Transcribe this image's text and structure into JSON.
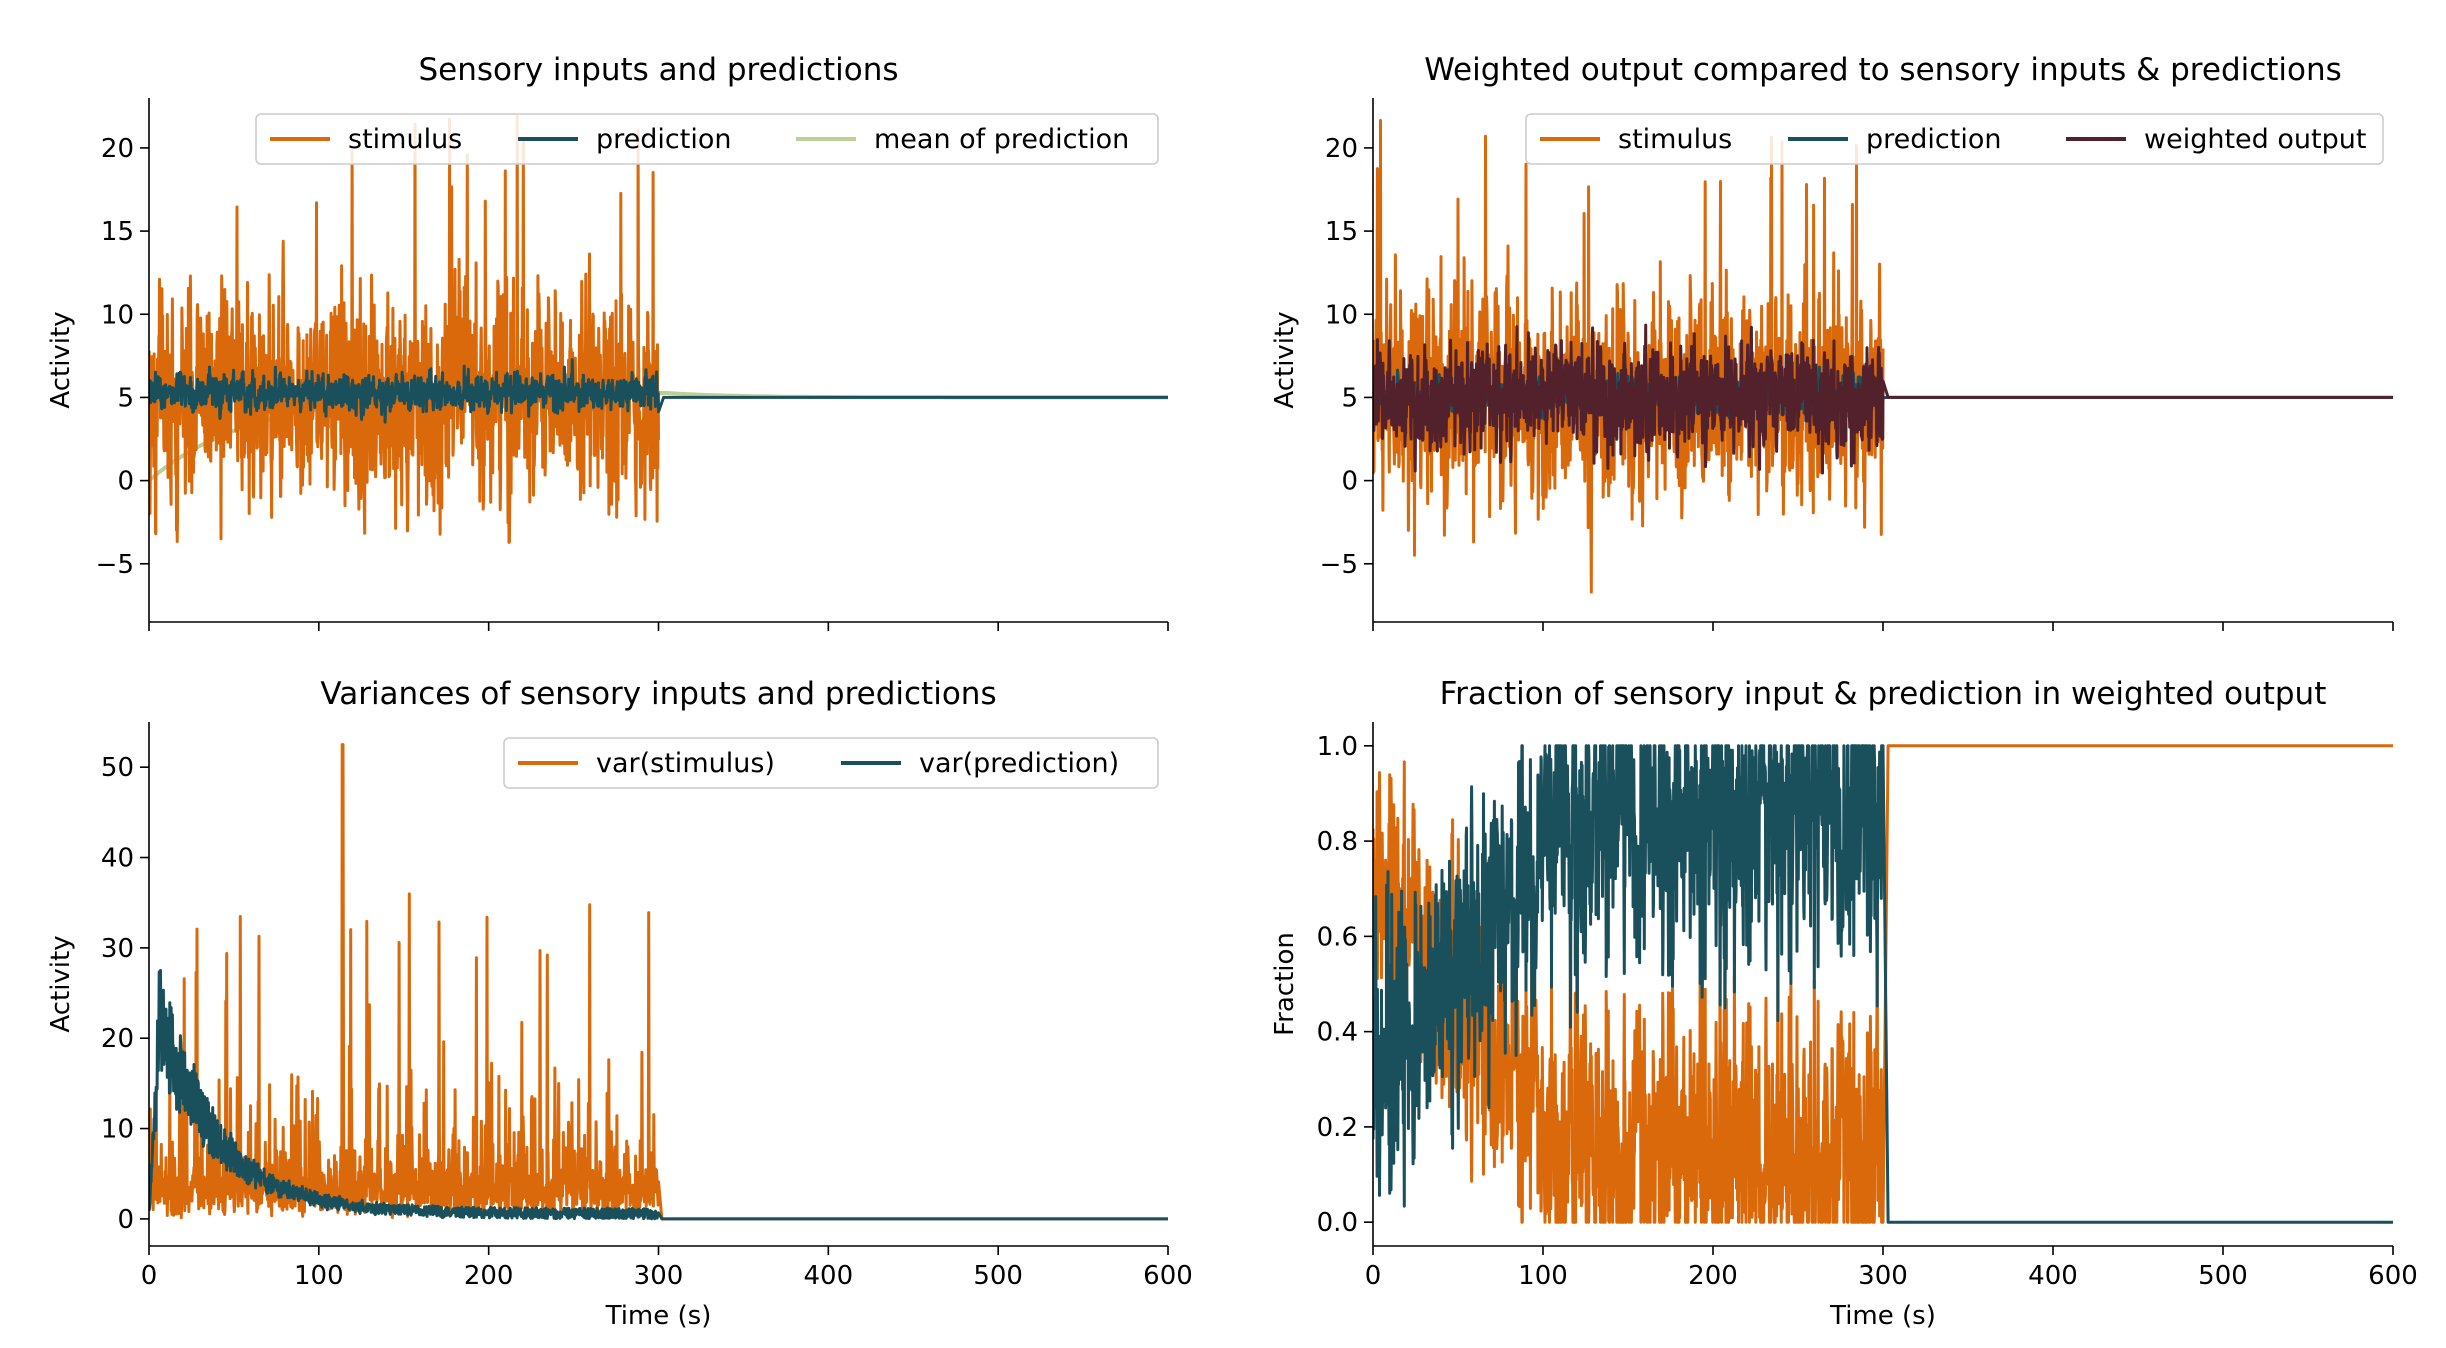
{
  "colors": {
    "stimulus": "#d9690a",
    "prediction": "#1a4f5c",
    "mean_of_prediction": "#bcd095",
    "weighted_output": "#53212b"
  },
  "chart_data": [
    {
      "id": "top-left",
      "type": "line",
      "title": "Sensory inputs and predictions",
      "xlabel": "",
      "ylabel": "Activity",
      "xlim": [
        0,
        600
      ],
      "ylim": [
        -8.5,
        23
      ],
      "xticks": [
        0,
        100,
        200,
        300,
        400,
        500,
        600
      ],
      "yticks": [
        -5,
        0,
        5,
        10,
        15,
        20
      ],
      "ytick_labels": [
        "−5",
        "0",
        "5",
        "10",
        "15",
        "20"
      ],
      "show_xtick_labels": false,
      "legend": {
        "placement": "upper-right",
        "ncol": 3
      },
      "series": [
        {
          "key": "stimulus",
          "name": "stimulus",
          "kind": "noise",
          "x_end": 300,
          "mean": 5,
          "spread": 4.5,
          "after": null
        },
        {
          "key": "prediction",
          "name": "prediction",
          "kind": "noise",
          "x_end": 300,
          "mean": 5.3,
          "spread": 0.8,
          "after": 5.0
        },
        {
          "key": "mean_of_prediction",
          "name": "mean of prediction",
          "kind": "saturating",
          "y0": 0,
          "y_inf": 5.3,
          "tau": 60,
          "x_end": 600,
          "bump": 5.3,
          "after": 5.0
        }
      ]
    },
    {
      "id": "top-right",
      "type": "line",
      "title": "Weighted output compared to sensory inputs & predictions",
      "xlabel": "",
      "ylabel": "Activity",
      "xlim": [
        0,
        600
      ],
      "ylim": [
        -8.5,
        23
      ],
      "xticks": [
        0,
        100,
        200,
        300,
        400,
        500,
        600
      ],
      "yticks": [
        -5,
        0,
        5,
        10,
        15,
        20
      ],
      "ytick_labels": [
        "−5",
        "0",
        "5",
        "10",
        "15",
        "20"
      ],
      "show_xtick_labels": false,
      "legend": {
        "placement": "upper-right",
        "ncol": 3
      },
      "series": [
        {
          "key": "stimulus",
          "name": "stimulus",
          "kind": "noise",
          "x_end": 300,
          "mean": 5,
          "spread": 4.5,
          "after": null
        },
        {
          "key": "prediction",
          "name": "prediction",
          "kind": "noise",
          "x_end": 300,
          "mean": 5.2,
          "spread": 0.7,
          "after": 5.0
        },
        {
          "key": "weighted_output",
          "name": "weighted output",
          "kind": "noise",
          "x_end": 300,
          "mean": 5,
          "spread": 2.2,
          "after": 5.0
        }
      ]
    },
    {
      "id": "bottom-left",
      "type": "line",
      "title": "Variances of sensory inputs and predictions",
      "xlabel": "Time (s)",
      "ylabel": "Activity",
      "xlim": [
        0,
        600
      ],
      "ylim": [
        -3,
        55
      ],
      "xticks": [
        0,
        100,
        200,
        300,
        400,
        500,
        600
      ],
      "yticks": [
        0,
        10,
        20,
        30,
        40,
        50
      ],
      "ytick_labels": [
        "0",
        "10",
        "20",
        "30",
        "40",
        "50"
      ],
      "show_xtick_labels": true,
      "legend": {
        "placement": "upper-right",
        "ncol": 2
      },
      "series": [
        {
          "key": "stimulus",
          "name": "var(stimulus)",
          "kind": "variance",
          "x_end": 300,
          "base": 3,
          "peak": 52.5,
          "after": 0
        },
        {
          "key": "prediction",
          "name": "var(prediction)",
          "kind": "decay",
          "x_end": 300,
          "peak": 27,
          "after": 0
        }
      ]
    },
    {
      "id": "bottom-right",
      "type": "line",
      "title": "Fraction of sensory input & prediction in weighted output",
      "xlabel": "Time (s)",
      "ylabel": "Fraction",
      "xlim": [
        0,
        600
      ],
      "ylim": [
        -0.05,
        1.05
      ],
      "xticks": [
        0,
        100,
        200,
        300,
        400,
        500,
        600
      ],
      "yticks": [
        0.0,
        0.2,
        0.4,
        0.6,
        0.8,
        1.0
      ],
      "ytick_labels": [
        "0.0",
        "0.2",
        "0.4",
        "0.6",
        "0.8",
        "1.0"
      ],
      "show_xtick_labels": true,
      "legend": null,
      "series": [
        {
          "key": "stimulus",
          "name": "stimulus",
          "kind": "fraction",
          "x_end": 303,
          "after": 1.0
        },
        {
          "key": "prediction",
          "name": "prediction",
          "kind": "fraction-complement",
          "x_end": 303,
          "after": 0.0
        }
      ]
    }
  ]
}
